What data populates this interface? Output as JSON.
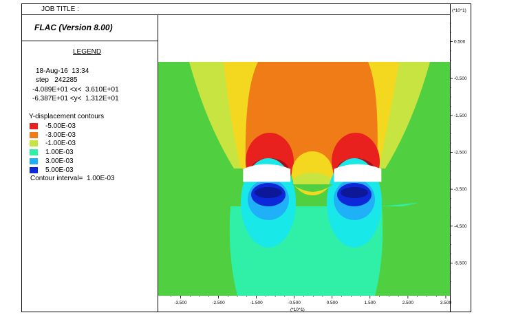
{
  "job_title": "JOB TITLE :",
  "program": "FLAC (Version 8.00)",
  "legend": {
    "title": "LEGEND",
    "date_time": "18-Aug-16  13:34",
    "step": "step   242285",
    "x_range": "-4.089E+01 <x<  3.610E+01",
    "y_range": "-6.387E+01 <y<  1.312E+01",
    "contour_heading": "Y-displacement contours",
    "contour_interval": "Contour interval=  1.00E-03"
  },
  "colors": {
    "neg_5e3": "#e8201e",
    "neg_4e3": "#f0401a",
    "neg_3e3": "#f07c18",
    "neg_2e3": "#f4d820",
    "neg_1e3": "#c8e440",
    "zero": "#50d040",
    "pos_1e3": "#30f0a8",
    "pos_2e3": "#18e8e8",
    "pos_3e3": "#20b0f8",
    "pos_4e3": "#3070f0",
    "pos_5e3": "#0c28d8",
    "dark_red": "#a01018",
    "dark_blue": "#0c1898"
  },
  "chart_data": {
    "type": "heatmap",
    "title": "Y-displacement contours",
    "contour_levels": [
      {
        "label": "-5.00E-03",
        "value": -0.005,
        "color": "#e8201e"
      },
      {
        "label": "-3.00E-03",
        "value": -0.003,
        "color": "#f07c18"
      },
      {
        "label": "-1.00E-03",
        "value": -0.001,
        "color": "#c8e440"
      },
      {
        "label": "1.00E-03",
        "value": 0.001,
        "color": "#30f0a8"
      },
      {
        "label": "3.00E-03",
        "value": 0.003,
        "color": "#20b0f8"
      },
      {
        "label": "5.00E-03",
        "value": 0.005,
        "color": "#0c28d8"
      }
    ],
    "contour_interval": 0.001,
    "xlim": [
      -4.089,
      3.61
    ],
    "ylim": [
      -6.387,
      1.312
    ],
    "x_scale_note": "(*10^1)",
    "y_scale_note": "(*10^1)",
    "x_ticks": [
      "-3.500",
      "-2.500",
      "-1.500",
      "-0.500",
      "0.500",
      "1.500",
      "2.500",
      "3.500"
    ],
    "x_tick_values": [
      -3.5,
      -2.5,
      -1.5,
      -0.5,
      0.5,
      1.5,
      2.5,
      3.5
    ],
    "y_ticks": [
      "0.500",
      "-0.500",
      "-1.500",
      "-2.500",
      "-3.500",
      "-4.500",
      "-5.500"
    ],
    "y_tick_values": [
      0.5,
      -0.5,
      -1.5,
      -2.5,
      -3.5,
      -4.5,
      -5.5
    ],
    "model_extent": {
      "x": [
        -4.0,
        3.6
      ],
      "y": [
        -6.387,
        -0.05
      ]
    },
    "openings": [
      {
        "x": [
          -1.85,
          -0.6
        ],
        "y": [
          -3.3,
          -2.95
        ]
      },
      {
        "x": [
          0.55,
          1.8
        ],
        "y": [
          -3.3,
          -2.95
        ]
      }
    ]
  }
}
